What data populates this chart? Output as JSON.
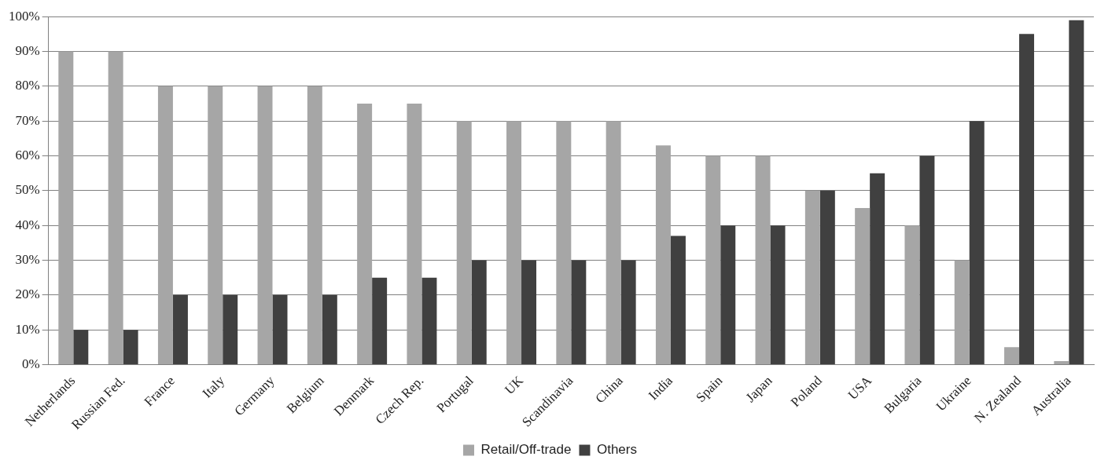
{
  "chart_data": {
    "type": "bar",
    "categories": [
      "Netherlands",
      "Russian Fed.",
      "France",
      "Italy",
      "Germany",
      "Belgium",
      "Denmark",
      "Czech Rep.",
      "Portugal",
      "UK",
      "Scandinavia",
      "China",
      "India",
      "Spain",
      "Japan",
      "Poland",
      "USA",
      "Bulgaria",
      "Ukraine",
      "N. Zealand",
      "Australia"
    ],
    "series": [
      {
        "name": "Retail/Off-trade",
        "color": "#a6a6a6",
        "values": [
          90,
          90,
          80,
          80,
          80,
          80,
          75,
          75,
          70,
          70,
          70,
          70,
          63,
          60,
          60,
          50,
          45,
          40,
          30,
          5,
          1
        ]
      },
      {
        "name": "Others",
        "color": "#404040",
        "values": [
          10,
          10,
          20,
          20,
          20,
          20,
          25,
          25,
          30,
          30,
          30,
          30,
          37,
          40,
          40,
          50,
          55,
          60,
          70,
          95,
          99
        ]
      }
    ],
    "ylim": [
      0,
      100
    ],
    "yticks": [
      {
        "value": 0,
        "label": "0%"
      },
      {
        "value": 10,
        "label": "10%"
      },
      {
        "value": 20,
        "label": "20%"
      },
      {
        "value": 30,
        "label": "30%"
      },
      {
        "value": 40,
        "label": "40%"
      },
      {
        "value": 50,
        "label": "50%"
      },
      {
        "value": 60,
        "label": "60%"
      },
      {
        "value": 70,
        "label": "70%"
      },
      {
        "value": 80,
        "label": "80%"
      },
      {
        "value": 90,
        "label": "90%"
      },
      {
        "value": 100,
        "label": "100%"
      }
    ],
    "grid": "y",
    "legend": "bottom"
  }
}
